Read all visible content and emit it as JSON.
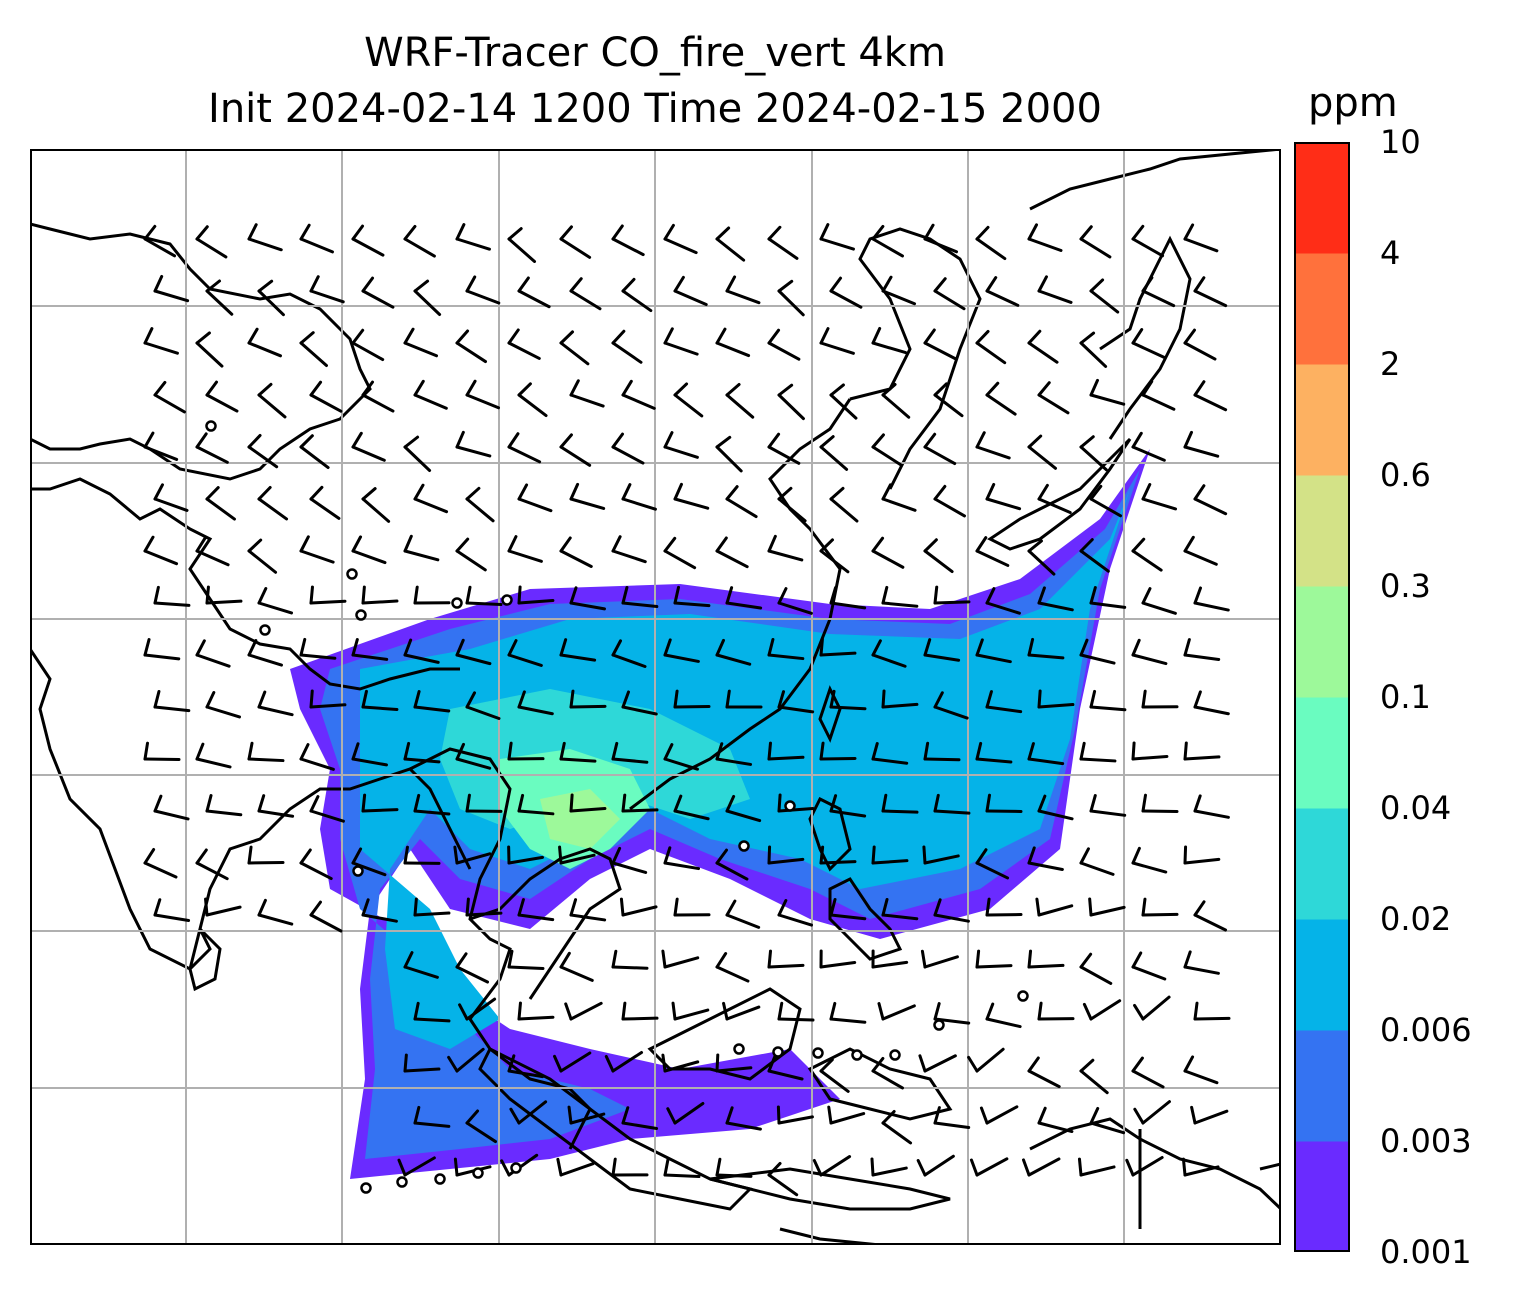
{
  "title": {
    "line1": "WRF-Tracer CO_fire_vert 4km",
    "line2": "Init 2024-02-14 1200 Time 2024-02-15 2000"
  },
  "colorbar": {
    "unit": "ppm",
    "levels": [
      "0.001",
      "0.003",
      "0.006",
      "0.02",
      "0.04",
      "0.1",
      "0.3",
      "0.6",
      "2",
      "4",
      "10"
    ],
    "colors": [
      "#6a2bff",
      "#3473f2",
      "#05b3e8",
      "#2ed8d8",
      "#6afcc0",
      "#9df99a",
      "#d3e287",
      "#fdb161",
      "#ff713c",
      "#ff2d17"
    ]
  },
  "map": {
    "gridlines": true,
    "tracer_shading_colors": [
      "#6a2bff",
      "#3473f2",
      "#05b3e8",
      "#2ed8d8",
      "#6afcc0",
      "#9df99a"
    ]
  }
}
